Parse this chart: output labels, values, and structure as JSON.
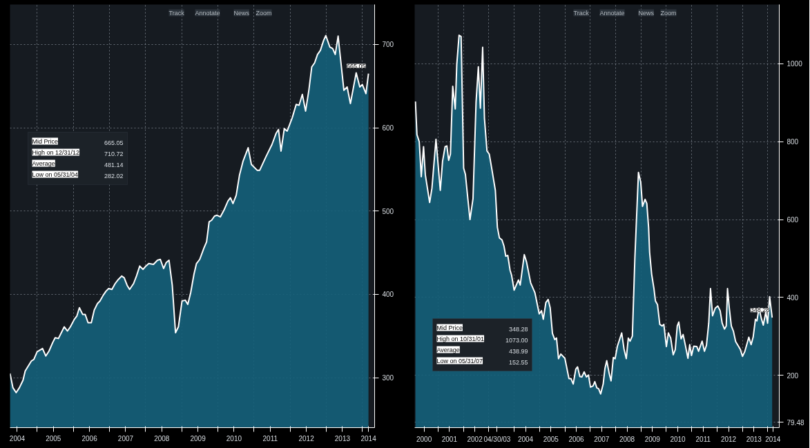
{
  "chart_data": [
    {
      "type": "area",
      "grid": true,
      "xlim": [
        2004.25,
        2014.34
      ],
      "ylim": [
        240,
        748
      ],
      "xticks": [
        {
          "value": 2004.45,
          "label": "2004"
        },
        {
          "value": 2005,
          "label": null
        },
        {
          "value": 2005.45,
          "label": "2005"
        },
        {
          "value": 2006,
          "label": null
        },
        {
          "value": 2006.45,
          "label": "2006"
        },
        {
          "value": 2007,
          "label": null
        },
        {
          "value": 2007.45,
          "label": "2007"
        },
        {
          "value": 2008,
          "label": null
        },
        {
          "value": 2008.45,
          "label": "2008"
        },
        {
          "value": 2009,
          "label": null
        },
        {
          "value": 2009.45,
          "label": "2009"
        },
        {
          "value": 2010,
          "label": null
        },
        {
          "value": 2010.45,
          "label": "2010"
        },
        {
          "value": 2011,
          "label": null
        },
        {
          "value": 2011.45,
          "label": "2011"
        },
        {
          "value": 2012,
          "label": null
        },
        {
          "value": 2012.45,
          "label": "2012"
        },
        {
          "value": 2013,
          "label": null
        },
        {
          "value": 2013.45,
          "label": "2013"
        },
        {
          "value": 2014,
          "label": null
        },
        {
          "value": 2014.17,
          "label": "2014"
        }
      ],
      "yticks": [
        300,
        400,
        500,
        600,
        700
      ],
      "annotations": [
        "Track",
        "Annotate",
        "News",
        "Zoom",
        "Mid Price",
        "665.05",
        "High on 12/31/12",
        "710.72",
        "Average",
        "481.14",
        "Low on 05/31/04",
        "282.02",
        {
          "text": "665.05",
          "x": 2014.17,
          "y": 665.05
        }
      ],
      "series": [
        {
          "color": "#14607a",
          "x": [
            2004.25,
            2004.33,
            2004.42,
            2004.51,
            2004.61,
            2004.67,
            2004.84,
            2004.91,
            2005.0,
            2005.15,
            2005.24,
            2005.33,
            2005.43,
            2005.5,
            2005.59,
            2005.75,
            2005.84,
            2005.92,
            2006.03,
            2006.1,
            2006.17,
            2006.26,
            2006.33,
            2006.41,
            2006.5,
            2006.58,
            2006.67,
            2006.74,
            2006.83,
            2006.91,
            2006.98,
            2007.07,
            2007.16,
            2007.25,
            2007.34,
            2007.41,
            2007.49,
            2007.56,
            2007.67,
            2007.75,
            2007.84,
            2007.93,
            2008.01,
            2008.09,
            2008.22,
            2008.33,
            2008.41,
            2008.5,
            2008.57,
            2008.65,
            2008.74,
            2008.83,
            2008.91,
            2009.01,
            2009.1,
            2009.17,
            2009.25,
            2009.34,
            2009.41,
            2009.5,
            2009.62,
            2009.69,
            2009.76,
            2009.83,
            2009.91,
            2009.98,
            2010.07,
            2010.17,
            2010.28,
            2010.35,
            2010.42,
            2010.51,
            2010.6,
            2010.7,
            2010.84,
            2010.93,
            2011.09,
            2011.16,
            2011.33,
            2011.5,
            2011.61,
            2011.68,
            2011.75,
            2011.84,
            2011.92,
            2012.06,
            2012.17,
            2012.25,
            2012.34,
            2012.43,
            2012.52,
            2012.6,
            2012.68,
            2012.76,
            2012.84,
            2012.93,
            2012.99,
            2013.1,
            2013.18,
            2013.25,
            2013.33,
            2013.49,
            2013.58,
            2013.67,
            2013.83,
            2013.93,
            2014.0,
            2014.1,
            2014.17
          ],
          "values": [
            305,
            288,
            282.02,
            288,
            297,
            308,
            320,
            322,
            331,
            335,
            326,
            332,
            342,
            348,
            347,
            361,
            356,
            361,
            370,
            374,
            384,
            376,
            376,
            366,
            366,
            381,
            389,
            392,
            399,
            404,
            407,
            406,
            413,
            418,
            422,
            420,
            411,
            406,
            413,
            422,
            434,
            430,
            434,
            437,
            436,
            441,
            442,
            431,
            438,
            441,
            411,
            354,
            361,
            392,
            393,
            388,
            402,
            424,
            437,
            442,
            456,
            463,
            487,
            489,
            494,
            495,
            493,
            501,
            512,
            516,
            509,
            519,
            543,
            560,
            576,
            556,
            549,
            549,
            565,
            580,
            593,
            598,
            572,
            599,
            596,
            612,
            628,
            627,
            640,
            620,
            645,
            673,
            678,
            688,
            693,
            705,
            710.72,
            697,
            695,
            688,
            710,
            645,
            649,
            629,
            666,
            649,
            652,
            641,
            665.05
          ]
        }
      ]
    },
    {
      "type": "area",
      "grid": true,
      "xlim": [
        2000.08,
        2014.45
      ],
      "ylim": [
        66,
        1152
      ],
      "xticks": [
        {
          "value": 2000.45,
          "label": "2000"
        },
        {
          "value": 2001,
          "label": null
        },
        {
          "value": 2001.45,
          "label": "2001"
        },
        {
          "value": 2002,
          "label": null
        },
        {
          "value": 2002.45,
          "label": "2002"
        },
        {
          "value": 2003,
          "label": null
        },
        {
          "value": 2003.33,
          "label": "04/30/03"
        },
        {
          "value": 2004,
          "label": null
        },
        {
          "value": 2004.45,
          "label": "2004"
        },
        {
          "value": 2005,
          "label": null
        },
        {
          "value": 2005.45,
          "label": "2005"
        },
        {
          "value": 2006,
          "label": null
        },
        {
          "value": 2006.45,
          "label": "2006"
        },
        {
          "value": 2007,
          "label": null
        },
        {
          "value": 2007.45,
          "label": "2007"
        },
        {
          "value": 2008,
          "label": null
        },
        {
          "value": 2008.45,
          "label": "2008"
        },
        {
          "value": 2009,
          "label": null
        },
        {
          "value": 2009.45,
          "label": "2009"
        },
        {
          "value": 2010,
          "label": null
        },
        {
          "value": 2010.45,
          "label": "2010"
        },
        {
          "value": 2011,
          "label": null
        },
        {
          "value": 2011.45,
          "label": "2011"
        },
        {
          "value": 2012,
          "label": null
        },
        {
          "value": 2012.45,
          "label": "2012"
        },
        {
          "value": 2013,
          "label": null
        },
        {
          "value": 2013.45,
          "label": "2013"
        },
        {
          "value": 2014,
          "label": null
        },
        {
          "value": 2014.2,
          "label": "2014"
        }
      ],
      "yticks": [
        {
          "value": 79.48,
          "label": "79.48"
        },
        200,
        400,
        600,
        800,
        1000
      ],
      "annotations": [
        "Track",
        "Annotate",
        "News",
        "Zoom",
        "Mid Price",
        "348.28",
        "High on 10/31/01",
        "1073.00",
        "Average",
        "438.99",
        "Low on 05/31/07",
        "152.55",
        {
          "text": "348.28",
          "x": 2014.17,
          "y": 348.28
        }
      ],
      "series": [
        {
          "color": "#14607a",
          "x": [
            2000.11,
            2000.17,
            2000.26,
            2000.34,
            2000.43,
            2000.5,
            2000.67,
            2000.76,
            2000.92,
            2001.09,
            2001.18,
            2001.28,
            2001.35,
            2001.42,
            2001.49,
            2001.58,
            2001.68,
            2001.74,
            2001.83,
            2001.91,
            2002.01,
            2002.08,
            2002.18,
            2002.26,
            2002.38,
            2002.5,
            2002.59,
            2002.67,
            2002.76,
            2002.83,
            2002.93,
            2003.02,
            2003.11,
            2003.26,
            2003.34,
            2003.42,
            2003.52,
            2003.6,
            2003.67,
            2003.75,
            2003.84,
            2003.9,
            2004.0,
            2004.17,
            2004.24,
            2004.4,
            2004.49,
            2004.65,
            2004.82,
            2004.99,
            2005.08,
            2005.15,
            2005.25,
            2005.34,
            2005.42,
            2005.51,
            2005.6,
            2005.67,
            2005.75,
            2005.84,
            2006.0,
            2006.16,
            2006.24,
            2006.33,
            2006.43,
            2006.5,
            2006.59,
            2006.67,
            2006.76,
            2006.85,
            2006.93,
            2007.01,
            2007.11,
            2007.18,
            2007.26,
            2007.33,
            2007.41,
            2007.51,
            2007.58,
            2007.65,
            2007.75,
            2007.82,
            2007.91,
            2007.98,
            2008.07,
            2008.24,
            2008.33,
            2008.42,
            2008.5,
            2008.57,
            2008.66,
            2008.76,
            2008.9,
            2008.99,
            2009.06,
            2009.16,
            2009.23,
            2009.3,
            2009.34,
            2009.42,
            2009.51,
            2009.57,
            2009.65,
            2009.74,
            2009.83,
            2009.9,
            2010.0,
            2010.08,
            2010.17,
            2010.27,
            2010.35,
            2010.43,
            2010.49,
            2010.58,
            2010.66,
            2010.75,
            2010.85,
            2010.92,
            2010.99,
            2011.08,
            2011.2,
            2011.27,
            2011.41,
            2011.5,
            2011.58,
            2011.67,
            2011.74,
            2011.82,
            2011.93,
            2012.03,
            2012.12,
            2012.2,
            2012.29,
            2012.36,
            2012.41,
            2012.48,
            2012.56,
            2012.64,
            2012.73,
            2012.84,
            2012.92,
            2013.0,
            2013.09,
            2013.25,
            2013.34,
            2013.42,
            2013.51,
            2013.57,
            2013.65,
            2013.74,
            2013.82,
            2013.92,
            2013.99,
            2014.07,
            2014.17
          ],
          "values": [
            903,
            818,
            800,
            710,
            787,
            715,
            644,
            680,
            806,
            675,
            750,
            787,
            789,
            752,
            768,
            942,
            884,
            998,
            1073,
            1070,
            732,
            716,
            651,
            600,
            654,
            902,
            992,
            886,
            1042,
            860,
            776,
            768,
            734,
            675,
            580,
            553,
            548,
            532,
            506,
            508,
            470,
            457,
            419,
            445,
            432,
            510,
            491,
            438,
            412,
            358,
            366,
            344,
            387,
            395,
            374,
            308,
            292,
            296,
            243,
            255,
            244,
            192,
            192,
            178,
            216,
            222,
            197,
            196,
            209,
            196,
            201,
            170,
            173,
            184,
            168,
            166,
            152.55,
            178,
            218,
            238,
            204,
            186,
            246,
            243,
            275,
            309,
            268,
            243,
            296,
            288,
            301,
            503,
            721,
            696,
            634,
            652,
            641,
            580,
            516,
            460,
            423,
            391,
            382,
            331,
            327,
            331,
            274,
            309,
            296,
            253,
            266,
            327,
            337,
            294,
            305,
            277,
            244,
            279,
            251,
            275,
            274,
            262,
            288,
            262,
            277,
            334,
            423,
            353,
            373,
            378,
            366,
            334,
            319,
            327,
            423,
            373,
            327,
            314,
            287,
            275,
            266,
            249,
            261,
            298,
            279,
            298,
            344,
            340,
            373,
            347,
            329,
            363,
            334,
            402,
            348.28
          ]
        }
      ]
    }
  ]
}
